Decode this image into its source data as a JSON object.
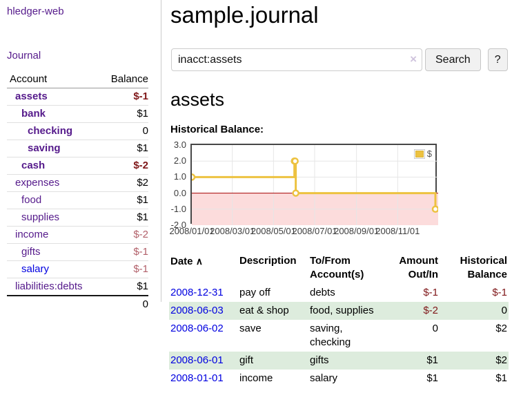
{
  "sidebar": {
    "brand": "hledger-web",
    "journal_link": "Journal",
    "accounts_header": {
      "account": "Account",
      "balance": "Balance"
    },
    "accounts": [
      {
        "name": "assets",
        "balance": "$-1"
      },
      {
        "name": "bank",
        "balance": "$1"
      },
      {
        "name": "checking",
        "balance": "0"
      },
      {
        "name": "saving",
        "balance": "$1"
      },
      {
        "name": "cash",
        "balance": "$-2"
      },
      {
        "name": "expenses",
        "balance": "$2"
      },
      {
        "name": "food",
        "balance": "$1"
      },
      {
        "name": "supplies",
        "balance": "$1"
      },
      {
        "name": "income",
        "balance": "$-2"
      },
      {
        "name": "gifts",
        "balance": "$-1"
      },
      {
        "name": "salary",
        "balance": "$-1"
      },
      {
        "name": "liabilities:debts",
        "balance": "$1"
      }
    ],
    "total": "0"
  },
  "header": {
    "title": "sample.journal"
  },
  "search": {
    "query": "inacct:assets",
    "clear_icon": "×",
    "button_label": "Search",
    "help_label": "?"
  },
  "account_page": {
    "title": "assets",
    "chart_label": "Historical Balance:"
  },
  "chart_data": {
    "type": "line",
    "title": "Historical Balance:",
    "step": true,
    "series": [
      {
        "name": "$",
        "color": "#edc240",
        "points": [
          {
            "date": "2008/01/01",
            "value": 1
          },
          {
            "date": "2008/06/01",
            "value": 2
          },
          {
            "date": "2008/06/02",
            "value": 2
          },
          {
            "date": "2008/06/03",
            "value": 0
          },
          {
            "date": "2008/12/31",
            "value": -1
          }
        ]
      }
    ],
    "x_ticks": [
      "2008/01/01",
      "2008/03/01",
      "2008/05/01",
      "2008/07/01",
      "2008/09/01",
      "2008/11/01"
    ],
    "y_ticks": [
      "3.0",
      "2.0",
      "1.0",
      "0.0",
      "-1.0",
      "-2.0"
    ],
    "ylim": [
      -2,
      3
    ],
    "x_domain_days": [
      0,
      365
    ],
    "grid": true,
    "legend_position": "top-right",
    "negative_region_color": "#fcdcdc",
    "zero_line_color": "#a40000",
    "grid_color": "#e6e6e6"
  },
  "register": {
    "columns": {
      "date": "Date",
      "sort_icon": "∧",
      "description": "Description",
      "tofrom_line1": "To/From",
      "tofrom_line2": "Account(s)",
      "amount_line1": "Amount",
      "amount_line2": "Out/In",
      "balance_line1": "Historical",
      "balance_line2": "Balance"
    },
    "rows": [
      {
        "date": "2008-12-31",
        "description": "pay off",
        "accounts": "debts",
        "amount": "$-1",
        "balance": "$-1"
      },
      {
        "date": "2008-06-03",
        "description": "eat & shop",
        "accounts": "food, supplies",
        "amount": "$-2",
        "balance": "0"
      },
      {
        "date": "2008-06-02",
        "description": "save",
        "accounts": "saving, checking",
        "amount": "0",
        "balance": "$2"
      },
      {
        "date": "2008-06-01",
        "description": "gift",
        "accounts": "gifts",
        "amount": "$1",
        "balance": "$2"
      },
      {
        "date": "2008-01-01",
        "description": "income",
        "accounts": "salary",
        "amount": "$1",
        "balance": "$1"
      }
    ]
  },
  "colors": {
    "link_visited_purple": "#551a8b",
    "link_blue": "#0000e0",
    "negative_amount": "#7f1719",
    "negative_amount_soft": "#b2606a",
    "row_highlight_green": "#ddecdd",
    "series_gold": "#edc240"
  }
}
